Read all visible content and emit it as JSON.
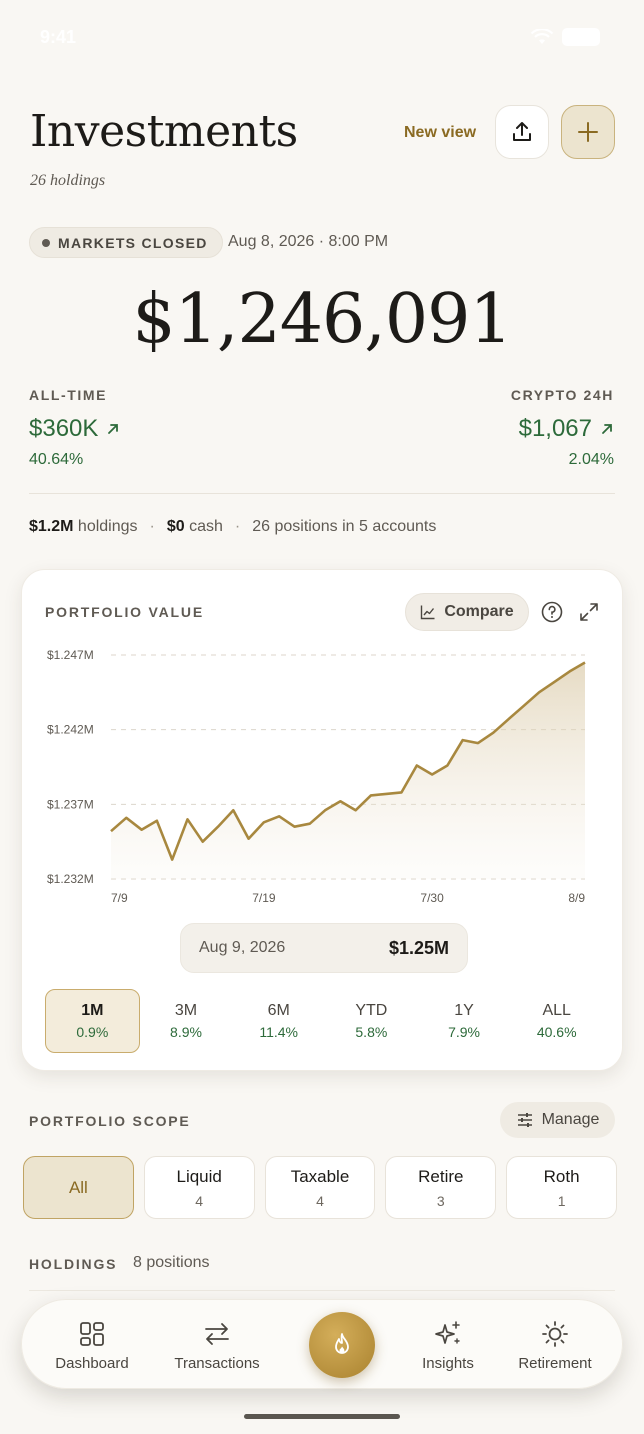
{
  "status": {
    "time": "9:41"
  },
  "header": {
    "title": "Investments",
    "subtitle": "26 holdings",
    "new_view": "New view",
    "share_icon": "share-icon",
    "add_icon": "plus-icon"
  },
  "market": {
    "status": "MARKETS CLOSED",
    "date": "Aug 8, 2026 · 8:00 PM"
  },
  "total_value": "$1,246,091",
  "stats": {
    "all_time": {
      "label": "ALL-TIME",
      "value": "$360K",
      "pct": "40.64%"
    },
    "crypto": {
      "label": "CRYPTO 24H",
      "value": "$1,067",
      "pct": "2.04%"
    }
  },
  "summary": {
    "holdings_value": "$1.2M",
    "holdings_label": "holdings",
    "cash_value": "$0",
    "cash_label": "cash",
    "positions": "26 positions in 5 accounts",
    "separator": "·"
  },
  "chart_card": {
    "title": "PORTFOLIO VALUE",
    "compare_label": "Compare",
    "tooltip": {
      "date": "Aug 9, 2026",
      "value": "$1.25M"
    },
    "ranges": [
      {
        "label": "1M",
        "pct": "0.9%",
        "active": true
      },
      {
        "label": "3M",
        "pct": "8.9%"
      },
      {
        "label": "6M",
        "pct": "11.4%"
      },
      {
        "label": "YTD",
        "pct": "5.8%"
      },
      {
        "label": "1Y",
        "pct": "7.9%"
      },
      {
        "label": "ALL",
        "pct": "40.6%"
      }
    ]
  },
  "chart_data": {
    "type": "area",
    "y_tick_labels": [
      "$1.247M",
      "$1.242M",
      "$1.237M",
      "$1.232M"
    ],
    "y_ticks": [
      1.247,
      1.242,
      1.237,
      1.232
    ],
    "x_tick_labels": [
      "7/9",
      "7/19",
      "7/30",
      "8/9"
    ],
    "x_tick_index": [
      0,
      10,
      21,
      31
    ],
    "ylim": [
      1.232,
      1.247
    ],
    "grid": true,
    "line_color": "#a8883f",
    "values": [
      1.2352,
      1.2361,
      1.2353,
      1.2359,
      1.2333,
      1.236,
      1.2345,
      1.2355,
      1.2366,
      1.2347,
      1.2358,
      1.2362,
      1.2355,
      1.2357,
      1.2366,
      1.2372,
      1.2366,
      1.2376,
      1.2377,
      1.2378,
      1.2396,
      1.239,
      1.2396,
      1.2413,
      1.2411,
      1.2418,
      1.2427,
      1.2436,
      1.2445,
      1.2452,
      1.2459,
      1.2465
    ]
  },
  "scope": {
    "title": "PORTFOLIO SCOPE",
    "manage_label": "Manage",
    "chips": [
      {
        "label": "All",
        "count": "",
        "active": true
      },
      {
        "label": "Liquid",
        "count": "4"
      },
      {
        "label": "Taxable",
        "count": "4"
      },
      {
        "label": "Retire",
        "count": "3"
      },
      {
        "label": "Roth",
        "count": "1"
      }
    ]
  },
  "holdings": {
    "title": "HOLDINGS",
    "count": "8 positions"
  },
  "tabbar": {
    "tabs": [
      {
        "label": "Dashboard",
        "icon": "dashboard-icon"
      },
      {
        "label": "Transactions",
        "icon": "transfer-icon"
      },
      {
        "label": "Insights",
        "icon": "sparkle-icon"
      },
      {
        "label": "Retirement",
        "icon": "sun-icon"
      }
    ],
    "center_icon": "flame-icon"
  },
  "colors": {
    "accent": "#a8883f",
    "positive": "#2d6a3a",
    "background": "#f9f7f3"
  }
}
